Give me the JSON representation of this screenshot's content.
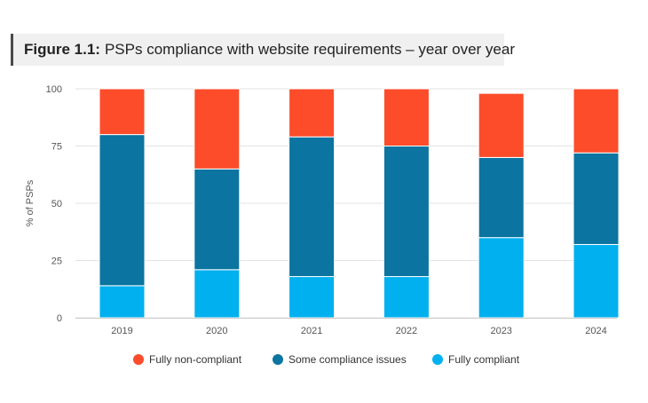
{
  "figure": {
    "prefix": "Figure 1.1:",
    "title": "PSPs compliance with website requirements – year over year"
  },
  "chart_data": {
    "type": "bar",
    "stacked": true,
    "categories": [
      "2019",
      "2020",
      "2021",
      "2022",
      "2023",
      "2024"
    ],
    "series": [
      {
        "name": "Fully compliant",
        "color": "#00b0ef",
        "values": [
          14,
          21,
          18,
          18,
          35,
          32
        ]
      },
      {
        "name": "Some compliance issues",
        "color": "#0b74a0",
        "values": [
          66,
          44,
          61,
          57,
          35,
          40
        ]
      },
      {
        "name": "Fully non-compliant",
        "color": "#fc4c2a",
        "values": [
          20,
          35,
          21,
          25,
          28,
          28
        ]
      }
    ],
    "legend_order": [
      "Fully non-compliant",
      "Some compliance issues",
      "Fully compliant"
    ],
    "ylabel": "% of PSPs",
    "xlabel": "",
    "ylim": [
      0,
      100
    ],
    "yticks": [
      0,
      25,
      50,
      75,
      100
    ],
    "grid": true,
    "legend_position": "bottom"
  }
}
